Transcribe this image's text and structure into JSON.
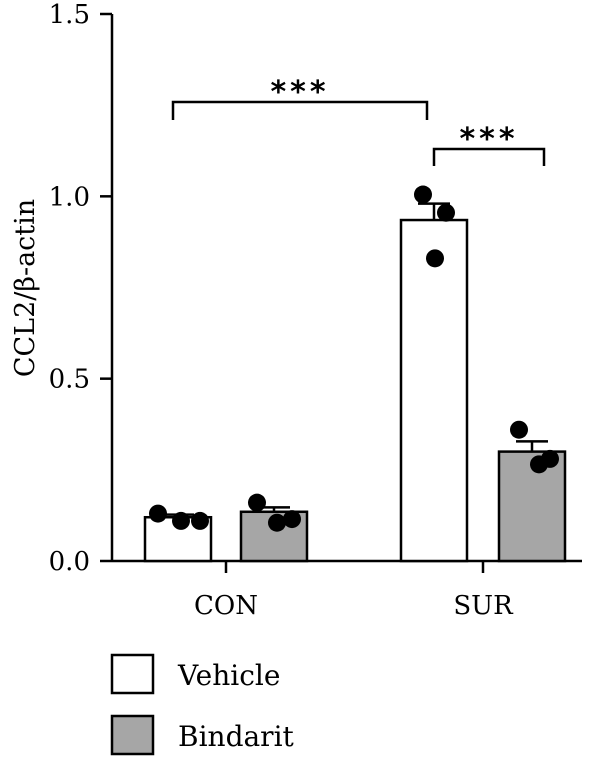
{
  "chart_data": {
    "type": "bar",
    "title": "",
    "xlabel": "",
    "ylabel": "CCL2/β-actin",
    "ylim": [
      0,
      1.5
    ],
    "yticks": [
      "0.0",
      "0.5",
      "1.0",
      "1.5"
    ],
    "yticks_values": [
      0,
      0.5,
      1.0,
      1.5
    ],
    "categories": [
      "CON",
      "SUR"
    ],
    "grid": false,
    "legend_position": "bottom-left",
    "series": [
      {
        "name": "Vehicle",
        "color": "#ffffff",
        "values": [
          0.12,
          0.935
        ],
        "errors": [
          0.007,
          0.045
        ],
        "points": [
          [
            0.13,
            0.11,
            0.11
          ],
          [
            1.005,
            0.955,
            0.83
          ]
        ]
      },
      {
        "name": "Bindarit",
        "color": "#a6a6a6",
        "values": [
          0.135,
          0.3
        ],
        "errors": [
          0.012,
          0.028
        ],
        "points": [
          [
            0.16,
            0.105,
            0.115
          ],
          [
            0.36,
            0.265,
            0.28
          ]
        ]
      }
    ],
    "annotations": [
      {
        "text": "***",
        "from": "CON-Vehicle",
        "to": "SUR-Vehicle"
      },
      {
        "text": "***",
        "from": "SUR-Vehicle",
        "to": "SUR-Bindarit"
      }
    ]
  }
}
